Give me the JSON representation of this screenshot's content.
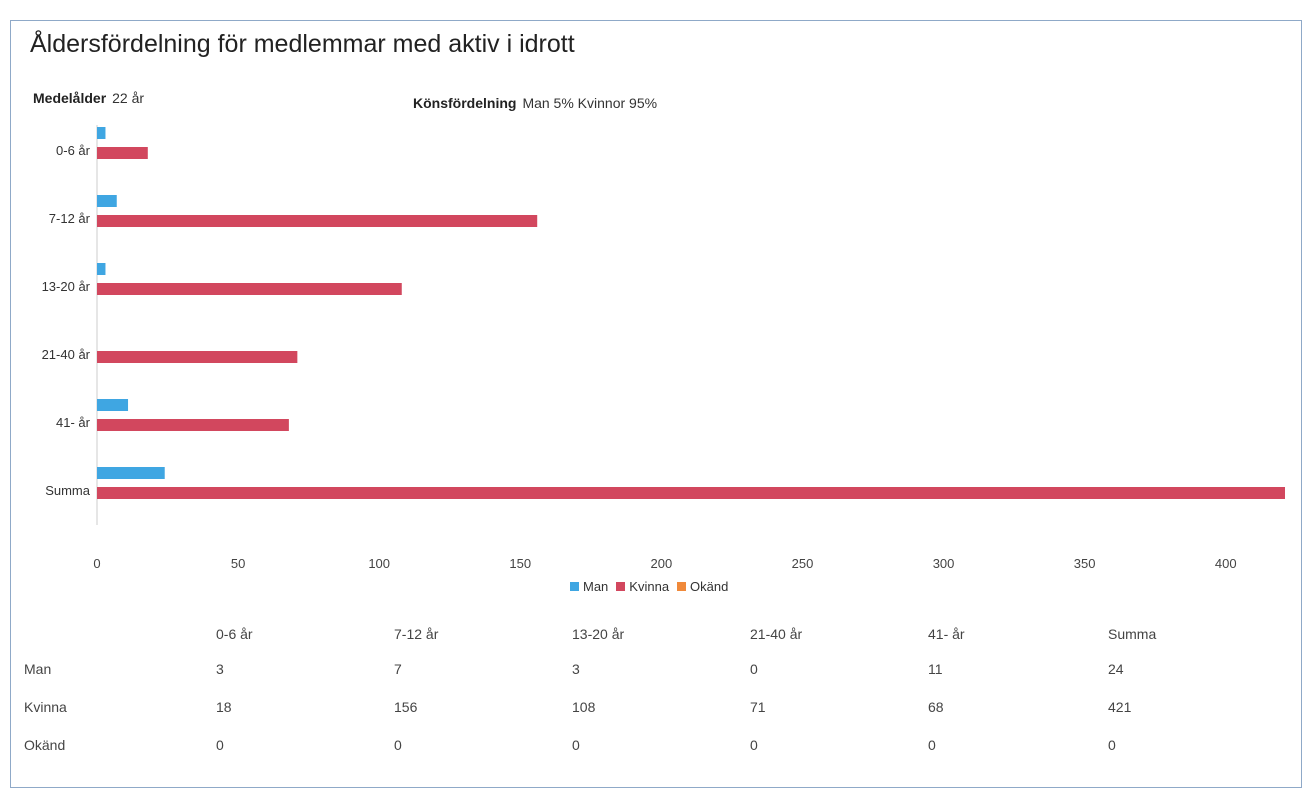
{
  "title": "Åldersfördelning för medlemmar med aktiv i idrott",
  "stats": {
    "avg_age_label": "Medelålder",
    "avg_age_value": "22 år",
    "gender_label": "Könsfördelning",
    "gender_value": "Man 5% Kvinnor 95%"
  },
  "chart_data": {
    "type": "bar",
    "orientation": "horizontal",
    "title": "",
    "xlabel": "",
    "ylabel": "",
    "categories": [
      "0-6 år",
      "7-12 år",
      "13-20 år",
      "21-40 år",
      "41- år",
      "Summa"
    ],
    "series": [
      {
        "name": "Man",
        "color": "#3fa6e2",
        "values": [
          3,
          7,
          3,
          0,
          11,
          24
        ]
      },
      {
        "name": "Kvinna",
        "color": "#d2475e",
        "values": [
          18,
          156,
          108,
          71,
          68,
          421
        ]
      },
      {
        "name": "Okänd",
        "color": "#f0893a",
        "values": [
          0,
          0,
          0,
          0,
          0,
          0
        ]
      }
    ],
    "xlim": [
      0,
      421
    ],
    "xticks": [
      0,
      50,
      100,
      150,
      200,
      250,
      300,
      350,
      400
    ],
    "grid": false,
    "legend_position": "bottom"
  },
  "legend": [
    "Man",
    "Kvinna",
    "Okänd"
  ],
  "table": {
    "columns": [
      "",
      "0-6 år",
      "7-12 år",
      "13-20 år",
      "21-40 år",
      "41- år",
      "Summa"
    ],
    "rows": [
      {
        "label": "Man",
        "values": [
          "3",
          "7",
          "3",
          "0",
          "11",
          "24"
        ]
      },
      {
        "label": "Kvinna",
        "values": [
          "18",
          "156",
          "108",
          "71",
          "68",
          "421"
        ]
      },
      {
        "label": "Okänd",
        "values": [
          "0",
          "0",
          "0",
          "0",
          "0",
          "0"
        ]
      }
    ]
  }
}
